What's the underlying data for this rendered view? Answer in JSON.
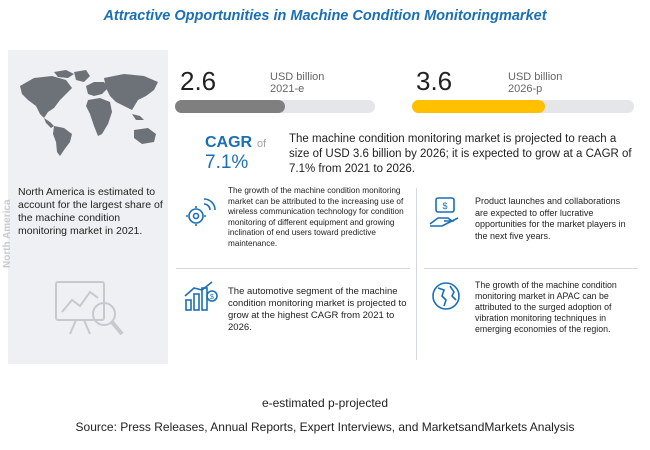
{
  "title": "Attractive Opportunities in Machine Condition Monitoringmarket",
  "left_panel": {
    "text": "North America is estimated to account for the largest share of the machine condition monitoring market in 2021.",
    "region_label": "North America"
  },
  "stats": {
    "current": {
      "value": "2.6",
      "unit": "USD billion",
      "year": "2021-e",
      "fill_fraction": 0.55,
      "color": "#7f7f7f"
    },
    "projected": {
      "value": "3.6",
      "unit": "USD billion",
      "year": "2026-p",
      "fill_fraction": 0.6,
      "color": "#ffc000"
    }
  },
  "cagr": {
    "label": "CAGR",
    "of": "of",
    "value": "7.1%",
    "text": "The machine condition monitoring market is projected to reach a size of USD 3.6 billion by 2026; it is expected to grow at a CAGR of 7.1% from 2021 to 2026."
  },
  "boxes": [
    {
      "icon": "wireless-gear-icon",
      "text": "The growth of the machine condition monitoring market can be attributed to the increasing use of wireless communication technology for condition monitoring of different equipment and growing inclination of end users toward predictive maintenance."
    },
    {
      "icon": "money-hand-icon",
      "text": "Product launches and collaborations are expected to offer lucrative opportunities for the market players in the next five years."
    },
    {
      "icon": "growth-chart-icon",
      "text": "The automotive segment of the machine condition monitoring market is projected to grow at the highest CAGR from 2021 to 2026."
    },
    {
      "icon": "globe-icon",
      "text": "The growth of the machine condition monitoring market in APAC can be attributed to the surged adoption of vibration monitoring techniques in emerging economies of the region."
    }
  ],
  "colors": {
    "title": "#1a6fb5",
    "accent_blue": "#1a6fb5",
    "bar_gray": "#7f7f7f",
    "bar_yellow": "#ffc000",
    "panel_bg": "#eef0f3"
  },
  "footnote": "e-estimated p-projected",
  "source": "Source: Press Releases, Annual Reports, Expert Interviews, and MarketsandMarkets Analysis"
}
